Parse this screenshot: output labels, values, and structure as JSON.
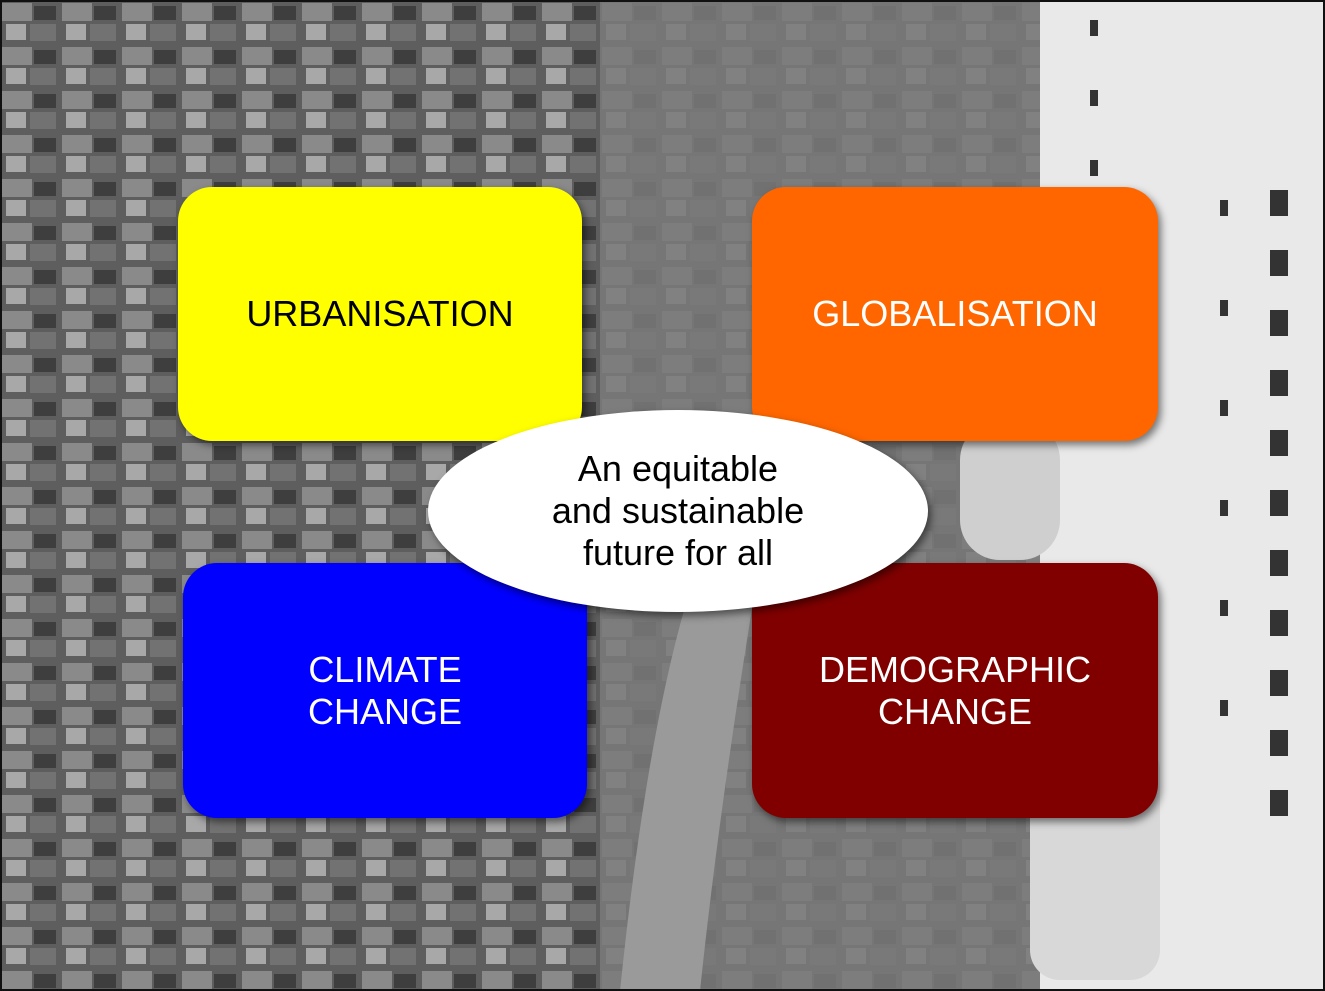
{
  "nodes": [
    {
      "lines": [
        "URBANISATION"
      ]
    },
    {
      "lines": [
        "GLOBALISATION"
      ]
    },
    {
      "lines": [
        "CLIMATE",
        "CHANGE"
      ]
    },
    {
      "lines": [
        "DEMOGRAPHIC",
        "CHANGE"
      ]
    }
  ],
  "center": {
    "lines": [
      "An equitable",
      "and sustainable",
      "future for all"
    ]
  }
}
